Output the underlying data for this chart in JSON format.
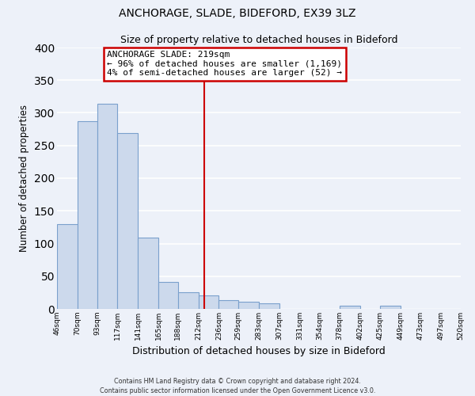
{
  "title": "ANCHORAGE, SLADE, BIDEFORD, EX39 3LZ",
  "subtitle": "Size of property relative to detached houses in Bideford",
  "xlabel": "Distribution of detached houses by size in Bideford",
  "ylabel": "Number of detached properties",
  "bar_color": "#ccd9ec",
  "bar_edge_color": "#7aa0cc",
  "background_color": "#edf1f9",
  "grid_color": "#ffffff",
  "bins": [
    46,
    70,
    93,
    117,
    141,
    165,
    188,
    212,
    236,
    259,
    283,
    307,
    331,
    354,
    378,
    402,
    425,
    449,
    473,
    497,
    520
  ],
  "counts": [
    130,
    287,
    314,
    269,
    109,
    41,
    25,
    21,
    13,
    11,
    8,
    0,
    0,
    0,
    5,
    0,
    5,
    0,
    0,
    0
  ],
  "property_sqm": 219,
  "annotation_title": "ANCHORAGE SLADE: 219sqm",
  "annotation_line1": "← 96% of detached houses are smaller (1,169)",
  "annotation_line2": "4% of semi-detached houses are larger (52) →",
  "annotation_box_color": "#ffffff",
  "annotation_border_color": "#cc0000",
  "vline_color": "#cc0000",
  "tick_labels": [
    "46sqm",
    "70sqm",
    "93sqm",
    "117sqm",
    "141sqm",
    "165sqm",
    "188sqm",
    "212sqm",
    "236sqm",
    "259sqm",
    "283sqm",
    "307sqm",
    "331sqm",
    "354sqm",
    "378sqm",
    "402sqm",
    "425sqm",
    "449sqm",
    "473sqm",
    "497sqm",
    "520sqm"
  ],
  "ylim": [
    0,
    400
  ],
  "yticks": [
    0,
    50,
    100,
    150,
    200,
    250,
    300,
    350,
    400
  ],
  "footnote1": "Contains HM Land Registry data © Crown copyright and database right 2024.",
  "footnote2": "Contains public sector information licensed under the Open Government Licence v3.0."
}
